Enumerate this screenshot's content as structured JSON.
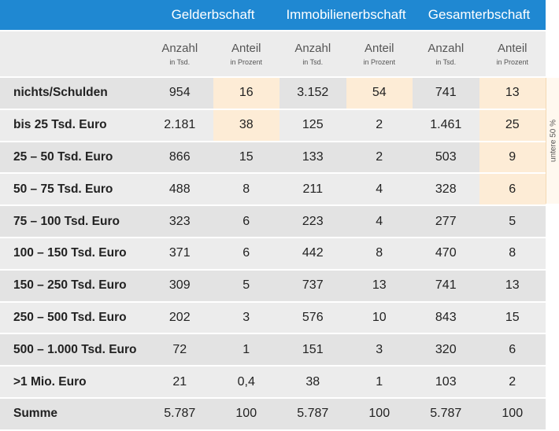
{
  "groups": [
    "Gelderbschaft",
    "Immobilienerbschaft",
    "Gesamterbschaft"
  ],
  "subheaders": {
    "count_label": "Anzahl",
    "count_unit": "in Tsd.",
    "share_label": "Anteil",
    "share_unit": "in Prozent"
  },
  "rows": [
    {
      "label": "nichts/Schulden",
      "values": [
        "954",
        "16",
        "3.152",
        "54",
        "741",
        "13"
      ]
    },
    {
      "label": "bis 25 Tsd. Euro",
      "values": [
        "2.181",
        "38",
        "125",
        "2",
        "1.461",
        "25"
      ]
    },
    {
      "label": "25 – 50 Tsd. Euro",
      "values": [
        "866",
        "15",
        "133",
        "2",
        "503",
        "9"
      ]
    },
    {
      "label": "50 – 75 Tsd. Euro",
      "values": [
        "488",
        "8",
        "211",
        "4",
        "328",
        "6"
      ]
    },
    {
      "label": "75 – 100 Tsd. Euro",
      "values": [
        "323",
        "6",
        "223",
        "4",
        "277",
        "5"
      ]
    },
    {
      "label": "100 – 150 Tsd. Euro",
      "values": [
        "371",
        "6",
        "442",
        "8",
        "470",
        "8"
      ]
    },
    {
      "label": "150 – 250 Tsd. Euro",
      "values": [
        "309",
        "5",
        "737",
        "13",
        "741",
        "13"
      ]
    },
    {
      "label": "250 – 500 Tsd. Euro",
      "values": [
        "202",
        "3",
        "576",
        "10",
        "843",
        "15"
      ]
    },
    {
      "label": "500 – 1.000 Tsd. Euro",
      "values": [
        "72",
        "1",
        "151",
        "3",
        "320",
        "6"
      ]
    },
    {
      "label": ">1 Mio. Euro",
      "values": [
        "21",
        "0,4",
        "38",
        "1",
        "103",
        "2"
      ]
    },
    {
      "label": "Summe",
      "values": [
        "5.787",
        "100",
        "5.787",
        "100",
        "5.787",
        "100"
      ]
    }
  ],
  "side_note": "untere 50 %",
  "colors": {
    "header_bg": "#1f88d2",
    "highlight": "#fdecd6"
  }
}
